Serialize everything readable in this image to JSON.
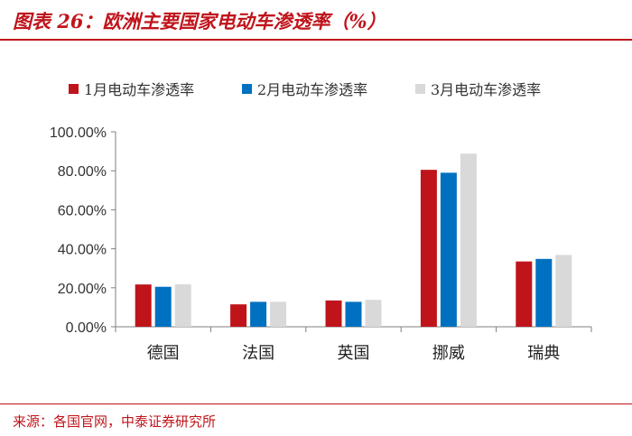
{
  "header": {
    "title": "图表 26：欧洲主要国家电动车渗透率（%）"
  },
  "footer": {
    "source": "来源：各国官网，中泰证券研究所"
  },
  "colors": {
    "accent": "#c0141b",
    "series": [
      "#c0141b",
      "#0070c0",
      "#d9d9d9"
    ]
  },
  "chart_data": {
    "type": "bar",
    "categories": [
      "德国",
      "法国",
      "英国",
      "挪威",
      "瑞典"
    ],
    "series": [
      {
        "name": "1月电动车渗透率",
        "values": [
          21.7,
          11.5,
          13.5,
          80.5,
          33.5
        ]
      },
      {
        "name": "2月电动车渗透率",
        "values": [
          20.5,
          12.8,
          12.8,
          79.0,
          34.8
        ]
      },
      {
        "name": "3月电动车渗透率",
        "values": [
          21.8,
          12.8,
          13.8,
          88.8,
          36.8
        ]
      }
    ],
    "y_ticks": [
      "0.00%",
      "20.00%",
      "40.00%",
      "60.00%",
      "80.00%",
      "100.00%"
    ],
    "ylim": [
      0,
      100
    ],
    "grid": false,
    "legend": "top-center"
  }
}
